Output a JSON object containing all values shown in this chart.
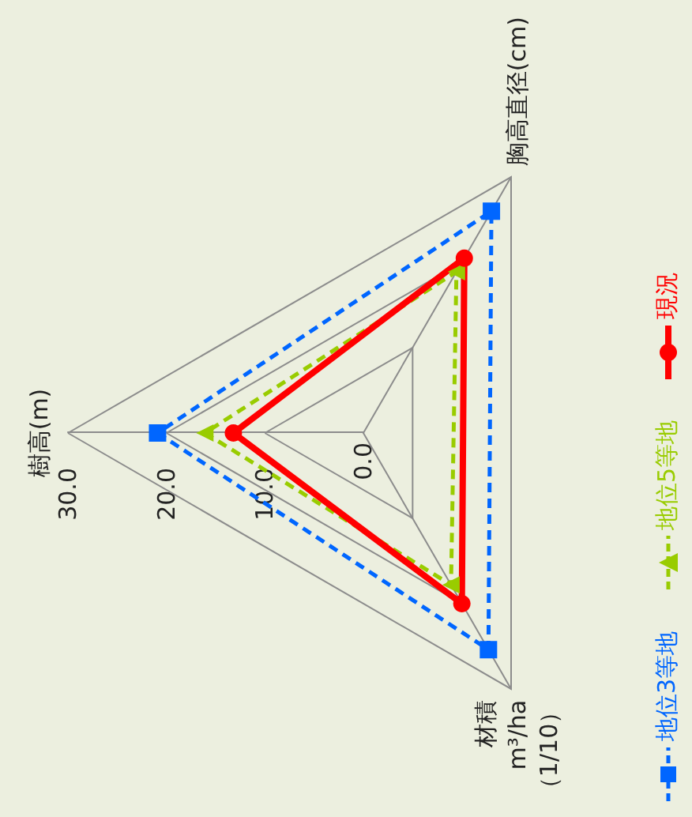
{
  "chart_data": {
    "type": "radar",
    "categories": [
      "樹高(m)",
      "胸高直径(cm)",
      "材積\nm³/ha\n（1/10）"
    ],
    "ylim": [
      0,
      30
    ],
    "yticks": [
      {
        "value": 0,
        "label": "0.0"
      },
      {
        "value": 10,
        "label": "10.0"
      },
      {
        "value": 20,
        "label": "20.0"
      },
      {
        "value": 30,
        "label": "30.0"
      }
    ],
    "legend": "right",
    "series": [
      {
        "name": "地位3等地",
        "color": "#0066ff",
        "values": [
          20.9,
          26.0,
          25.4
        ],
        "marker": "square",
        "line_style": "dashed"
      },
      {
        "name": "地位5等地",
        "color": "#99cc00",
        "values": [
          16.1,
          18.9,
          17.8
        ],
        "marker": "triangle",
        "line_style": "dashed"
      },
      {
        "name": "現況",
        "color": "#ff0000",
        "values": [
          13.2,
          20.5,
          20.0
        ],
        "marker": "circle",
        "line_style": "solid"
      }
    ]
  }
}
